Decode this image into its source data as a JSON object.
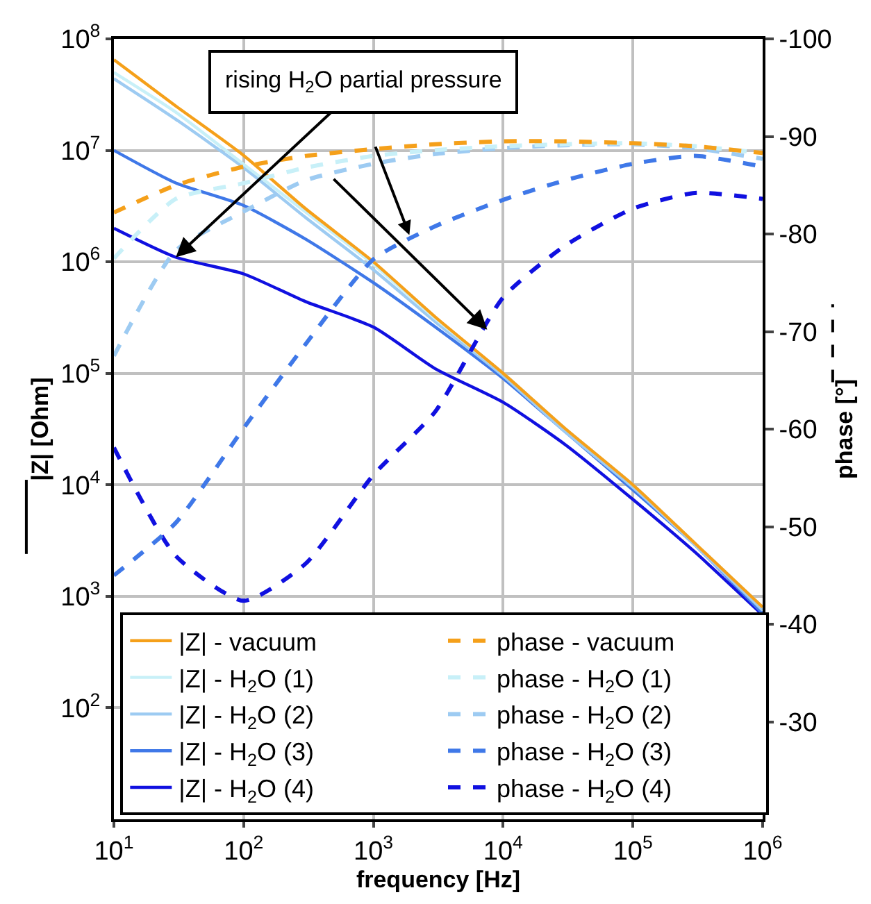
{
  "chart_data": {
    "type": "line",
    "xlabel": "frequency [Hz]",
    "ylabel": "|Z| [Ohm]",
    "y2label": "phase [°]",
    "x": [
      10,
      30,
      100,
      300,
      1000,
      3000,
      10000,
      30000,
      100000,
      300000,
      1000000
    ],
    "series": [
      {
        "name": "|Z| - vacuum",
        "color": "#f5a01a",
        "line_style": "solid",
        "values": [
          65000000,
          25000000,
          9000000,
          3000000,
          1000000,
          320000,
          100000,
          32000,
          10000,
          3000,
          800
        ]
      },
      {
        "name": "|Z| - H$_{2}$O (1)",
        "color": "#c8f0f8",
        "line_style": "solid",
        "values": [
          50000000,
          22000000,
          7500000,
          2800000,
          950000,
          310000,
          100000,
          32000,
          10000,
          3000,
          800
        ]
      },
      {
        "name": "|Z| - H$_{2}$O (2)",
        "color": "#9dcbf2",
        "line_style": "solid",
        "values": [
          44000000,
          19000000,
          7000000,
          2500000,
          850000,
          290000,
          95000,
          30000,
          9500,
          2900,
          750
        ]
      },
      {
        "name": "|Z| - H$_{2}$O (3)",
        "color": "#3f78e8",
        "line_style": "solid",
        "values": [
          10000000,
          5100000,
          3200000,
          1600000,
          650000,
          260000,
          90000,
          30000,
          9000,
          2900,
          700
        ]
      },
      {
        "name": "|Z| - H$_{2}$O (4)",
        "color": "#1010e0",
        "line_style": "solid",
        "values": [
          2000000,
          1100000,
          780000,
          440000,
          260000,
          110000,
          55000,
          23000,
          7400,
          2500,
          680
        ]
      },
      {
        "name": "phase - vacuum",
        "color": "#f5a01a",
        "line_style": "dashed",
        "axis": "y2",
        "values": [
          -82.2,
          -85,
          -86.9,
          -88,
          -88.7,
          -89.2,
          -89.5,
          -89.5,
          -89.3,
          -89,
          -88.3
        ]
      },
      {
        "name": "phase - H$_{2}$O (1)",
        "color": "#c8f0f8",
        "line_style": "dashed",
        "axis": "y2",
        "values": [
          -77.5,
          -83.6,
          -85.2,
          -86.8,
          -88,
          -88.6,
          -89,
          -89.2,
          -89.3,
          -89,
          -88.3
        ]
      },
      {
        "name": "phase - H$_{2}$O (2)",
        "color": "#9dcbf2",
        "line_style": "dashed",
        "axis": "y2",
        "values": [
          -67.5,
          -78.3,
          -82.3,
          -85.5,
          -87.2,
          -88.2,
          -88.8,
          -89.1,
          -89.2,
          -88.8,
          -87.7
        ]
      },
      {
        "name": "phase - H$_{2}$O (3)",
        "color": "#3f78e8",
        "line_style": "dashed",
        "axis": "y2",
        "values": [
          -45,
          -50.4,
          -60.1,
          -68.7,
          -77.4,
          -80.8,
          -83.5,
          -85.5,
          -87.2,
          -88,
          -86.9
        ]
      },
      {
        "name": "phase - H$_{2}$O (4)",
        "color": "#1010e0",
        "line_style": "dashed",
        "axis": "y2",
        "values": [
          -58.1,
          -47,
          -42.4,
          -46.2,
          -55.3,
          -61.8,
          -73.5,
          -78.8,
          -82.6,
          -84.2,
          -83.6
        ]
      }
    ],
    "log": "xy",
    "xlim": [
      10,
      1000000
    ],
    "xticks": [
      {
        "value": 10,
        "label": "10$^{1}$"
      },
      {
        "value": 100,
        "label": "10$^{2}$"
      },
      {
        "value": 1000,
        "label": "10$^{3}$"
      },
      {
        "value": 10000,
        "label": "10$^{4}$"
      },
      {
        "value": 100000,
        "label": "10$^{5}$"
      },
      {
        "value": 1000000,
        "label": "10$^{6}$"
      }
    ],
    "ylim": [
      10,
      100000000
    ],
    "yticks": [
      {
        "value": 100,
        "label": "10$^{2}$"
      },
      {
        "value": 1000,
        "label": "10$^{3}$"
      },
      {
        "value": 10000,
        "label": "10$^{4}$"
      },
      {
        "value": 100000,
        "label": "10$^{5}$"
      },
      {
        "value": 1000000,
        "label": "10$^{6}$"
      },
      {
        "value": 10000000,
        "label": "10$^{7}$"
      },
      {
        "value": 100000000,
        "label": "10$^{8}$"
      }
    ],
    "y2lim": [
      -20,
      -100
    ],
    "y2ticks": [
      -100,
      -90,
      -80,
      -70,
      -60,
      -50,
      -40,
      -30
    ],
    "grid": true,
    "legend": "bottom",
    "annotations": [
      {
        "text": "rising H$_{2}$O partial pressure",
        "x": 30,
        "y": 1100000
      }
    ]
  }
}
